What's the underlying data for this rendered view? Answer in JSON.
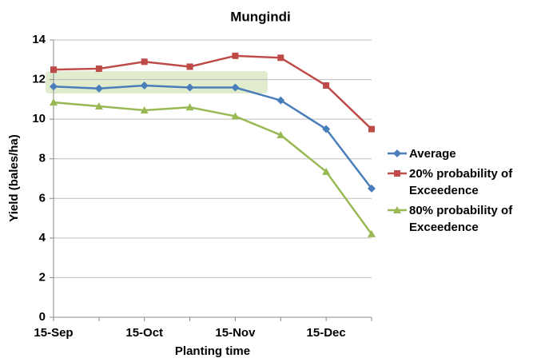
{
  "chart_data": {
    "type": "line",
    "title": "Mungindi",
    "x_label": "Planting time",
    "y_label": "Yield (bales/ha)",
    "categories": [
      "15-Sep",
      null,
      "15-Oct",
      null,
      "15-Nov",
      null,
      "15-Dec",
      null
    ],
    "series": [
      {
        "name": "Average",
        "color": "#4a7ebb",
        "marker": "diamond",
        "values": [
          11.65,
          11.55,
          11.7,
          11.6,
          11.6,
          10.95,
          9.5,
          6.5
        ]
      },
      {
        "name": "20% probability of Exceedence",
        "color": "#be4b48",
        "marker": "square",
        "values": [
          12.5,
          12.55,
          12.9,
          12.65,
          13.2,
          13.1,
          11.7,
          9.5
        ]
      },
      {
        "name": "80% probability of Exceedence",
        "color": "#98b954",
        "marker": "triangle",
        "values": [
          10.85,
          10.65,
          10.45,
          10.6,
          10.15,
          9.2,
          7.35,
          4.2
        ]
      }
    ],
    "ylim": [
      0,
      14
    ],
    "yticks": [
      0,
      2,
      4,
      6,
      8,
      10,
      12,
      14
    ],
    "grid": true,
    "legend": "right"
  }
}
